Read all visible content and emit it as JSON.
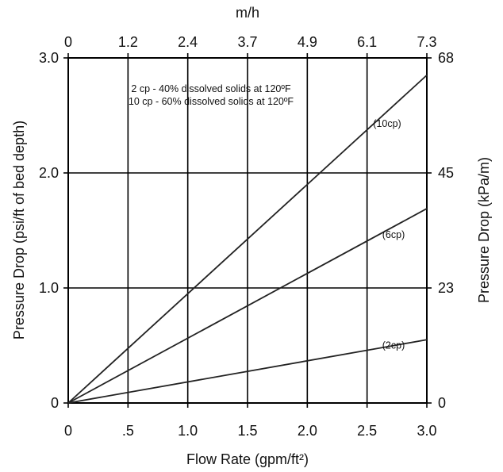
{
  "chart_data": {
    "type": "line",
    "x": [
      0,
      3.0
    ],
    "xlim": [
      0,
      3.0
    ],
    "ylim": [
      0,
      3.0
    ],
    "xticks": [
      "0",
      ".5",
      "1.0",
      "1.5",
      "2.0",
      "2.5",
      "3.0"
    ],
    "yticks": [
      "0",
      "1.0",
      "2.0",
      "3.0"
    ],
    "xlabel": "Flow Rate (gpm/ft²)",
    "ylabel": "Pressure Drop (psi/ft of bed depth)",
    "x2label": "m/h",
    "x2ticks": [
      "0",
      "1.2",
      "2.4",
      "3.7",
      "4.9",
      "6.1",
      "7.3"
    ],
    "y2label": "Pressure Drop (kPa/m)",
    "y2ticks": [
      "0",
      "23",
      "45",
      "68"
    ],
    "grid": true,
    "annotations": [
      "2 cp - 40% dissolved solids at 120ºF",
      "10 cp - 60% dissolved solids at 120ºF"
    ],
    "series": [
      {
        "name": "(10cp)",
        "values": [
          0,
          2.85
        ]
      },
      {
        "name": "(6cp)",
        "values": [
          0,
          1.69
        ]
      },
      {
        "name": "(2cp)",
        "values": [
          0,
          0.55
        ]
      }
    ]
  }
}
